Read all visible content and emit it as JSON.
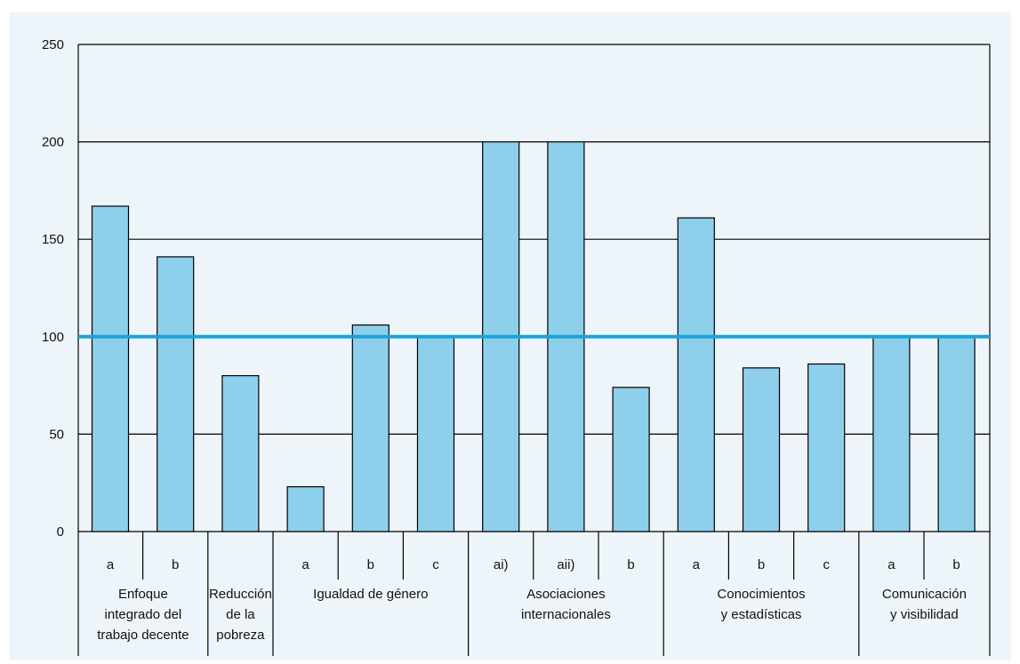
{
  "colors": {
    "background": "#eef5fa",
    "bar_fill": "#8ecfec",
    "bar_stroke": "#000000",
    "reference_line": "#1ba3d7",
    "grid": "#000000"
  },
  "chart_data": {
    "type": "bar",
    "title": "",
    "xlabel": "",
    "ylabel": "",
    "ylim": [
      0,
      250
    ],
    "yticks": [
      0,
      50,
      100,
      150,
      200,
      250
    ],
    "grid": true,
    "reference_line": 100,
    "categories": [
      "a",
      "b",
      "",
      "a",
      "b",
      "c",
      "ai)",
      "aii)",
      "b",
      "a",
      "b",
      "c",
      "a",
      "b"
    ],
    "values": [
      167,
      141,
      80,
      23,
      106,
      100,
      200,
      200,
      74,
      161,
      84,
      86,
      100,
      100
    ],
    "groups": [
      {
        "label_lines": [
          "Enfoque",
          "integrado del",
          "trabajo decente"
        ],
        "count": 2
      },
      {
        "label_lines": [
          "Reducción",
          "de la",
          "pobreza"
        ],
        "count": 1
      },
      {
        "label_lines": [
          "Igualdad de género"
        ],
        "count": 3
      },
      {
        "label_lines": [
          "Asociaciones",
          "internacionales"
        ],
        "count": 3
      },
      {
        "label_lines": [
          "Conocimientos",
          "y estadísticas"
        ],
        "count": 3
      },
      {
        "label_lines": [
          "Comunicación",
          "y visibilidad"
        ],
        "count": 2
      }
    ]
  }
}
